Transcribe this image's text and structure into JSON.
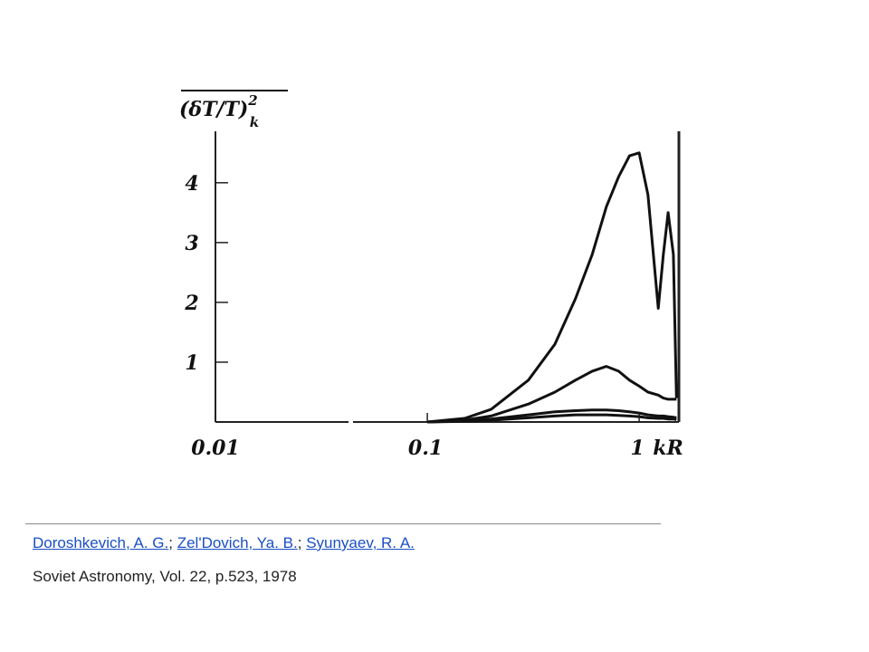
{
  "chart_data": {
    "type": "line",
    "y_label": "(δT/T)",
    "y_label_sup": "2",
    "y_label_sub": "k",
    "x_label": "kR",
    "x": [
      0.1,
      0.15,
      0.2,
      0.3,
      0.4,
      0.5,
      0.6,
      0.7,
      0.8,
      0.9,
      1.0,
      1.1,
      1.23,
      1.3,
      1.37,
      1.45,
      1.5
    ],
    "series": [
      {
        "color": "#111111",
        "values": [
          0,
          0.06,
          0.21,
          0.7,
          1.3,
          2.06,
          2.8,
          3.6,
          4.1,
          4.45,
          4.5,
          3.8,
          1.9,
          2.8,
          3.5,
          2.8,
          0.4
        ]
      },
      {
        "color": "#111111",
        "values": [
          0,
          0.03,
          0.1,
          0.3,
          0.5,
          0.7,
          0.85,
          0.93,
          0.85,
          0.7,
          0.6,
          0.5,
          0.45,
          0.4,
          0.38,
          0.38,
          0.38
        ]
      },
      {
        "color": "#111111",
        "values": [
          0,
          0.02,
          0.05,
          0.12,
          0.17,
          0.19,
          0.2,
          0.2,
          0.19,
          0.17,
          0.15,
          0.12,
          0.1,
          0.1,
          0.09,
          0.08,
          0.07
        ]
      },
      {
        "color": "#111111",
        "values": [
          0,
          0.01,
          0.03,
          0.07,
          0.1,
          0.12,
          0.12,
          0.12,
          0.11,
          0.1,
          0.09,
          0.07,
          0.06,
          0.06,
          0.05,
          0.05,
          0.04
        ]
      }
    ],
    "xlog": true,
    "xlim": [
      0.01,
      1.54
    ],
    "xticks": [
      0.01,
      0.1,
      1
    ],
    "ylim": [
      0,
      4.86
    ],
    "yticks": [
      1,
      2,
      3,
      4
    ]
  },
  "citation": {
    "authors": [
      "Doroshkevich, A. G.",
      "Zel'Dovich, Ya. B.",
      "Syunyaev, R. A."
    ],
    "separator": ";",
    "source": "Soviet Astronomy, Vol. 22, p.523, 1978"
  }
}
